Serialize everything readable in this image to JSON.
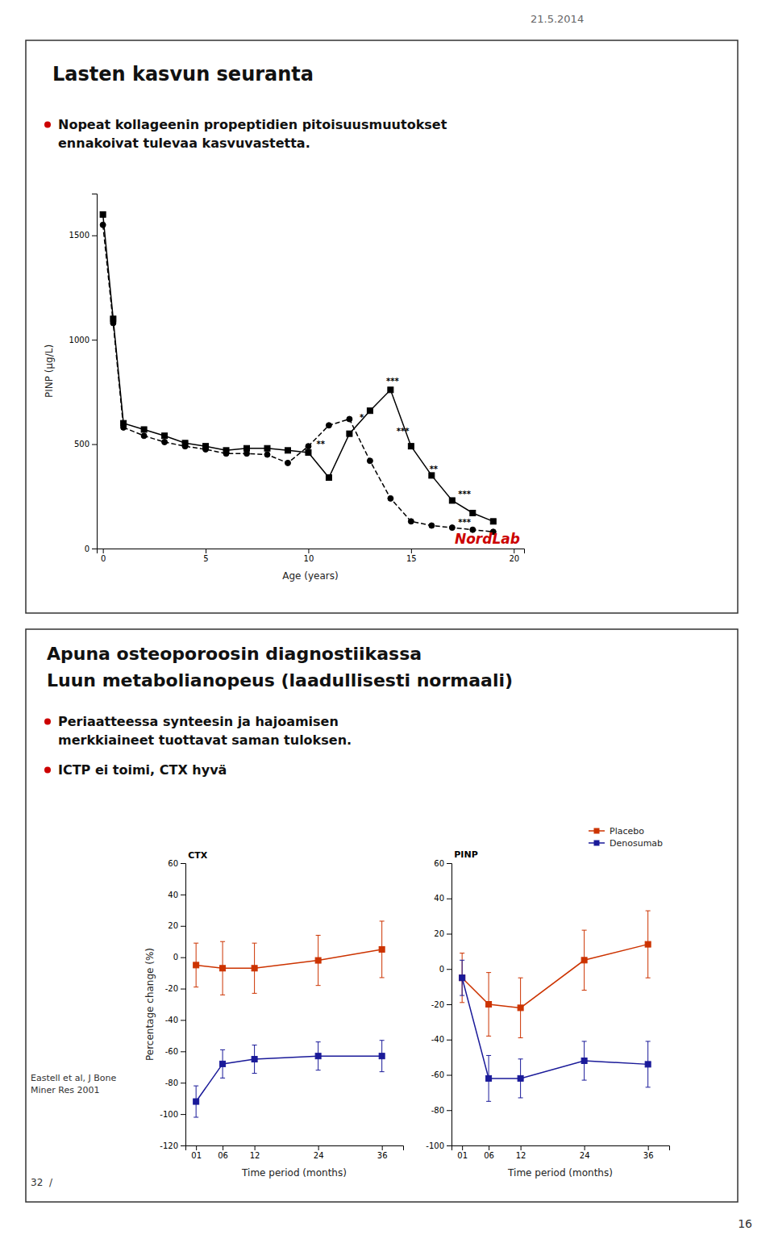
{
  "chart_data": [
    {
      "type": "line",
      "title": "Lasten kasvun seuranta",
      "x_label": "Age (years)",
      "y_label": "PINP (µg/L)",
      "x": [
        0,
        0.5,
        1,
        2,
        3,
        4,
        5,
        6,
        7,
        8,
        9,
        10,
        11,
        12,
        13,
        14,
        15,
        16,
        17,
        18,
        19
      ],
      "series": [
        {
          "color": "#000000",
          "marker": "square",
          "line_style": "solid",
          "values": [
            1600,
            1100,
            600,
            570,
            540,
            505,
            490,
            470,
            480,
            480,
            470,
            460,
            340,
            550,
            660,
            760,
            490,
            350,
            230,
            170,
            130
          ]
        },
        {
          "color": "#000000",
          "marker": "circle",
          "line_style": "dashed",
          "values": [
            1550,
            1080,
            580,
            540,
            510,
            490,
            475,
            455,
            455,
            450,
            410,
            490,
            590,
            620,
            420,
            240,
            130,
            110,
            100,
            90,
            80
          ]
        }
      ],
      "xlim": [
        -0.3,
        20.5
      ],
      "xticks": [
        0,
        5,
        10,
        15,
        20
      ],
      "ylim": [
        0,
        1700
      ],
      "yticks": [
        0,
        500,
        1000,
        1500
      ],
      "annotations": [
        {
          "text": "21.5.2014"
        },
        {
          "text": "Nopeat kollageenin propeptidien pitoisuusmuutokset\nennakoivat tulevaa kasvuvastetta.",
          "marker": "bullet",
          "color": "#cc0000"
        },
        {
          "x": 12.6,
          "y": 615,
          "text": "*"
        },
        {
          "x": 14.1,
          "y": 790,
          "text": "***"
        },
        {
          "x": 14.6,
          "y": 550,
          "text": "***"
        },
        {
          "x": 10.6,
          "y": 488,
          "text": "**"
        },
        {
          "x": 16.1,
          "y": 368,
          "text": "**"
        },
        {
          "x": 17.6,
          "y": 248,
          "text": "***"
        },
        {
          "x": 17.6,
          "y": 112,
          "text": "***"
        },
        {
          "x": 20.3,
          "y": 25,
          "text": "NordLab",
          "color": "#cc0000"
        },
        {
          "text": "16"
        }
      ]
    },
    {
      "type": "line",
      "title": "Apuna osteoporoosin diagnostiikassa",
      "subtitle": "Luun metabolianopeus (laadullisesti normaali)",
      "x_label": "Time period (months)",
      "y_label": "Percentage change (%)",
      "x": [
        1,
        6,
        12,
        24,
        36
      ],
      "series": [
        {
          "color": "#cc3300",
          "marker": "square",
          "values": [
            -5,
            -7,
            -7,
            -2,
            5
          ],
          "errors": [
            14,
            17,
            16,
            16,
            18
          ]
        },
        {
          "color": "#1a1a99",
          "marker": "square",
          "values": [
            -92,
            -68,
            -65,
            -63,
            -63
          ],
          "errors": [
            10,
            9,
            9,
            9,
            10
          ]
        }
      ],
      "xlim": [
        -1,
        40
      ],
      "xticks": [
        {
          "value": 1,
          "label": "01"
        },
        {
          "value": 6,
          "label": "06"
        },
        12,
        24,
        36
      ],
      "ylim": [
        -120,
        60
      ],
      "yticks": [
        -120,
        -100,
        -80,
        -60,
        -40,
        -20,
        0,
        20,
        40,
        60
      ],
      "annotations": [
        {
          "text": "Periaatteessa synteesin ja hajoamisen\nmerkkiaineet tuottavat saman tuloksen.",
          "marker": "bullet",
          "color": "#cc0000"
        },
        {
          "text": "ICTP ei toimi, CTX hyvä",
          "marker": "bullet",
          "color": "#cc0000"
        },
        {
          "text": "Eastell et al, J Bone\nMiner Res 2001"
        },
        {
          "text": "32  /"
        },
        {
          "x": -0.5,
          "y": 63,
          "text": "CTX"
        }
      ]
    },
    {
      "type": "line",
      "x_label": "Time period (months)",
      "x": [
        1,
        6,
        12,
        24,
        36
      ],
      "series": [
        {
          "name": "Placebo",
          "color": "#cc3300",
          "marker": "square",
          "values": [
            -5,
            -20,
            -22,
            5,
            14
          ],
          "errors": [
            14,
            18,
            17,
            17,
            19
          ]
        },
        {
          "name": "Denosumab",
          "color": "#1a1a99",
          "marker": "square",
          "values": [
            -5,
            -62,
            -62,
            -52,
            -54
          ],
          "errors": [
            10,
            13,
            11,
            11,
            13
          ]
        }
      ],
      "xlim": [
        -1,
        40
      ],
      "xticks": [
        {
          "value": 1,
          "label": "01"
        },
        {
          "value": 6,
          "label": "06"
        },
        12,
        24,
        36
      ],
      "ylim": [
        -100,
        60
      ],
      "yticks": [
        -100,
        -80,
        -60,
        -40,
        -20,
        0,
        20,
        40,
        60
      ],
      "legend": "upper right",
      "annotations": [
        {
          "x": -0.5,
          "y": 63,
          "text": "PINP"
        }
      ]
    }
  ]
}
